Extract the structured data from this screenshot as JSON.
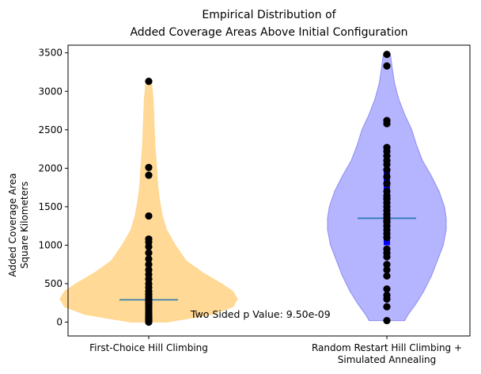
{
  "chart_data": {
    "type": "violin",
    "title_line1": "Empirical Distribution of",
    "title_line2": "Added Coverage Areas Above Initial Configuration",
    "ylabel_line1": "Added Coverage Area",
    "ylabel_line2": "Square Kilometers",
    "ylim": [
      -180,
      3600
    ],
    "yticks": [
      0,
      500,
      1000,
      1500,
      2000,
      2500,
      3000,
      3500
    ],
    "annotation": "Two Sided p Value: 9.50e-09",
    "categories": [
      {
        "label_lines": [
          "First-Choice Hill Climbing"
        ]
      },
      {
        "label_lines": [
          "Random Restart Hill Climbing +",
          "Simulated Annealing"
        ]
      }
    ],
    "series": [
      {
        "fill": "#ffd78f",
        "edge": "#ffd78f",
        "median_color": "#1f77b4",
        "median": 290,
        "min": 0,
        "max": 3130,
        "density": [
          [
            0,
            0.2
          ],
          [
            100,
            0.72
          ],
          [
            200,
            0.95
          ],
          [
            300,
            1.0
          ],
          [
            400,
            0.95
          ],
          [
            500,
            0.82
          ],
          [
            650,
            0.6
          ],
          [
            800,
            0.42
          ],
          [
            1000,
            0.3
          ],
          [
            1200,
            0.2
          ],
          [
            1400,
            0.15
          ],
          [
            1600,
            0.12
          ],
          [
            1800,
            0.1
          ],
          [
            2000,
            0.09
          ],
          [
            2300,
            0.07
          ],
          [
            2600,
            0.06
          ],
          [
            2900,
            0.05
          ],
          [
            3130,
            0.03
          ]
        ],
        "points": [
          0,
          10,
          20,
          30,
          40,
          50,
          60,
          80,
          100,
          120,
          150,
          180,
          210,
          240,
          270,
          300,
          330,
          360,
          400,
          450,
          500,
          560,
          620,
          680,
          750,
          820,
          900,
          980,
          1040,
          1080,
          1380,
          1910,
          2010,
          3130
        ]
      },
      {
        "fill": "#b0b0ff",
        "edge": "#8e8ef0",
        "bar_color": "#0000ff",
        "median_color": "#1f77b4",
        "median": 1350,
        "min": 20,
        "max": 3480,
        "density": [
          [
            20,
            0.3
          ],
          [
            100,
            0.36
          ],
          [
            250,
            0.5
          ],
          [
            400,
            0.62
          ],
          [
            600,
            0.75
          ],
          [
            800,
            0.85
          ],
          [
            1000,
            0.95
          ],
          [
            1200,
            1.0
          ],
          [
            1350,
            1.0
          ],
          [
            1500,
            0.97
          ],
          [
            1700,
            0.88
          ],
          [
            1900,
            0.75
          ],
          [
            2100,
            0.6
          ],
          [
            2300,
            0.5
          ],
          [
            2500,
            0.42
          ],
          [
            2700,
            0.3
          ],
          [
            2900,
            0.2
          ],
          [
            3100,
            0.13
          ],
          [
            3300,
            0.09
          ],
          [
            3480,
            0.06
          ]
        ],
        "bar_range": [
          1000,
          2000
        ],
        "points": [
          20,
          200,
          300,
          350,
          430,
          600,
          680,
          750,
          850,
          900,
          950,
          1100,
          1150,
          1200,
          1250,
          1300,
          1320,
          1360,
          1400,
          1450,
          1500,
          1550,
          1600,
          1640,
          1700,
          1800,
          1890,
          1980,
          2050,
          2100,
          2160,
          2220,
          2270,
          2580,
          2620,
          3330,
          3480
        ]
      }
    ]
  }
}
